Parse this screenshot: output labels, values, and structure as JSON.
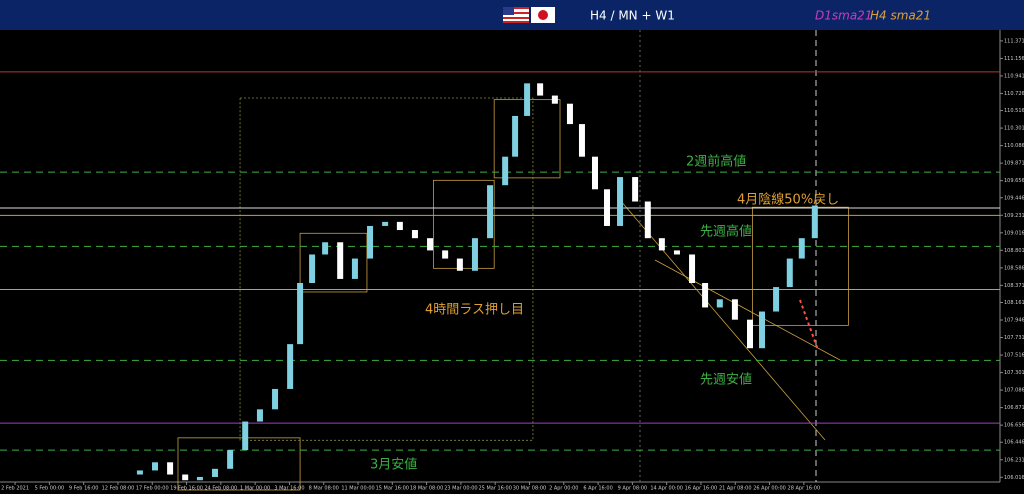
{
  "chart_data": {
    "type": "candlestick",
    "title": "H4 / MN + W1",
    "legend": [
      {
        "name": "D1sma21",
        "color": "#c040c0"
      },
      {
        "name": "H4 sma21",
        "color": "#e0a030"
      }
    ],
    "xlim": [
      -0.44,
      28.72
    ],
    "ylim": [
      105.86,
      111.48
    ],
    "xticks": [
      {
        "value": 0,
        "label": "2 Feb 2021"
      },
      {
        "value": 1,
        "label": "5 Feb 00:00"
      },
      {
        "value": 2,
        "label": "9 Feb 16:00"
      },
      {
        "value": 3,
        "label": "12 Feb 08:00"
      },
      {
        "value": 4,
        "label": "17 Feb 00:00"
      },
      {
        "value": 5,
        "label": "19 Feb 16:00"
      },
      {
        "value": 6,
        "label": "24 Feb 08:00"
      },
      {
        "value": 7,
        "label": "1 Mar 00:00"
      },
      {
        "value": 8,
        "label": "3 Mar 16:00"
      },
      {
        "value": 9,
        "label": "8 Mar 08:00"
      },
      {
        "value": 10,
        "label": "11 Mar 00:00"
      },
      {
        "value": 11,
        "label": "15 Mar 16:00"
      },
      {
        "value": 12,
        "label": "18 Mar 08:00"
      },
      {
        "value": 13,
        "label": "23 Mar 00:00"
      },
      {
        "value": 14,
        "label": "25 Mar 16:00"
      },
      {
        "value": 15,
        "label": "30 Mar 08:00"
      },
      {
        "value": 16,
        "label": "2 Apr 00:00"
      },
      {
        "value": 17,
        "label": "6 Apr 16:00"
      },
      {
        "value": 18,
        "label": "9 Apr 08:00"
      },
      {
        "value": 19,
        "label": "14 Apr 00:00"
      },
      {
        "value": 20,
        "label": "16 Apr 16:00"
      },
      {
        "value": 21,
        "label": "21 Apr 08:00"
      },
      {
        "value": 22,
        "label": "26 Apr 00:00"
      },
      {
        "value": 23,
        "label": "28 Apr 16:00"
      }
    ],
    "yticks": [
      111.371,
      111.156,
      110.941,
      110.726,
      110.516,
      110.301,
      110.086,
      109.871,
      109.656,
      109.446,
      109.231,
      109.016,
      108.801,
      108.586,
      108.371,
      108.161,
      107.946,
      107.731,
      107.516,
      107.301,
      107.086,
      106.871,
      106.656,
      106.446,
      106.231,
      106.016
    ],
    "up_color": "#7fd0e0",
    "down_color": "#ffffff",
    "x": [
      3.64,
      4.08,
      4.52,
      4.96,
      5.39,
      5.83,
      6.27,
      6.71,
      7.14,
      7.58,
      8.02,
      8.31,
      8.66,
      9.04,
      9.48,
      9.91,
      10.35,
      10.79,
      11.22,
      11.66,
      12.1,
      12.54,
      12.97,
      13.41,
      13.85,
      14.29,
      14.58,
      14.93,
      15.31,
      15.74,
      16.18,
      16.53,
      16.91,
      17.26,
      17.64,
      18.08,
      18.45,
      18.86,
      19.3,
      19.74,
      20.12,
      20.55,
      20.99,
      21.43,
      21.78,
      22.19,
      22.59,
      22.94,
      23.32
    ],
    "open": [
      106.05,
      106.1,
      106.2,
      106.05,
      105.98,
      106.02,
      106.12,
      106.35,
      106.7,
      106.85,
      107.1,
      107.65,
      108.4,
      108.75,
      108.9,
      108.45,
      108.7,
      109.1,
      109.15,
      109.05,
      108.95,
      108.8,
      108.7,
      108.55,
      108.95,
      109.6,
      109.95,
      110.45,
      110.85,
      110.7,
      110.6,
      110.35,
      109.95,
      109.55,
      109.1,
      109.7,
      109.4,
      108.95,
      108.8,
      108.75,
      108.4,
      108.1,
      108.2,
      107.95,
      107.6,
      108.05,
      108.35,
      108.7,
      108.95
    ],
    "close": [
      106.1,
      106.2,
      106.05,
      105.98,
      106.02,
      106.12,
      106.35,
      106.7,
      106.85,
      107.1,
      107.65,
      108.4,
      108.75,
      108.9,
      108.45,
      108.7,
      109.1,
      109.15,
      109.05,
      108.95,
      108.8,
      108.7,
      108.55,
      108.95,
      109.6,
      109.95,
      110.45,
      110.85,
      110.7,
      110.6,
      110.35,
      109.95,
      109.55,
      109.1,
      109.7,
      109.4,
      108.95,
      108.8,
      108.75,
      108.4,
      108.1,
      108.2,
      107.95,
      107.6,
      108.05,
      108.35,
      108.7,
      108.95,
      109.35
    ],
    "levels": [
      {
        "value": 110.99,
        "color": "#c03030",
        "style": "solid"
      },
      {
        "value": 109.76,
        "color": "#3cb043",
        "style": "dashed"
      },
      {
        "value": 109.32,
        "color": "#dddddd",
        "style": "solid"
      },
      {
        "value": 109.23,
        "color": "#c8a040",
        "style": "solid"
      },
      {
        "value": 108.85,
        "color": "#3cb043",
        "style": "dashed"
      },
      {
        "value": 108.32,
        "color": "#c8a040",
        "style": "solid"
      },
      {
        "value": 107.45,
        "color": "#3cb043",
        "style": "dashed"
      },
      {
        "value": 106.68,
        "color": "#a040c0",
        "style": "solid"
      },
      {
        "value": 106.35,
        "color": "#3cb043",
        "style": "dashed"
      }
    ],
    "boxes": [
      {
        "x": [
          4.75,
          8.31
        ],
        "y": [
          105.86,
          106.5
        ],
        "color": "#c8a040"
      },
      {
        "x": [
          6.56,
          15.1
        ],
        "y": [
          106.47,
          110.67
        ],
        "color": "#8a8a40"
      },
      {
        "x": [
          8.31,
          10.26
        ],
        "y": [
          108.29,
          109.01
        ],
        "color": "#c8a040"
      },
      {
        "x": [
          12.2,
          13.97
        ],
        "y": [
          108.58,
          109.66
        ],
        "color": "#c8a040"
      },
      {
        "x": [
          13.97,
          15.89
        ],
        "y": [
          109.69,
          110.65
        ],
        "color": "#c8a040"
      },
      {
        "x": [
          21.5,
          24.3
        ],
        "y": [
          107.88,
          109.33
        ],
        "color": "#c8a040"
      }
    ],
    "annotations": [
      {
        "text": "2週前高値",
        "color": "#3cb043"
      },
      {
        "text": "先週高値",
        "color": "#3cb043"
      },
      {
        "text": "先週安値",
        "color": "#3cb043"
      },
      {
        "text": "3月安値",
        "color": "#3cb043"
      },
      {
        "text": "4時間ラス押し目",
        "color": "#e0a030"
      },
      {
        "text": "4月陰線50%戻し",
        "color": "#e0a030"
      }
    ]
  }
}
